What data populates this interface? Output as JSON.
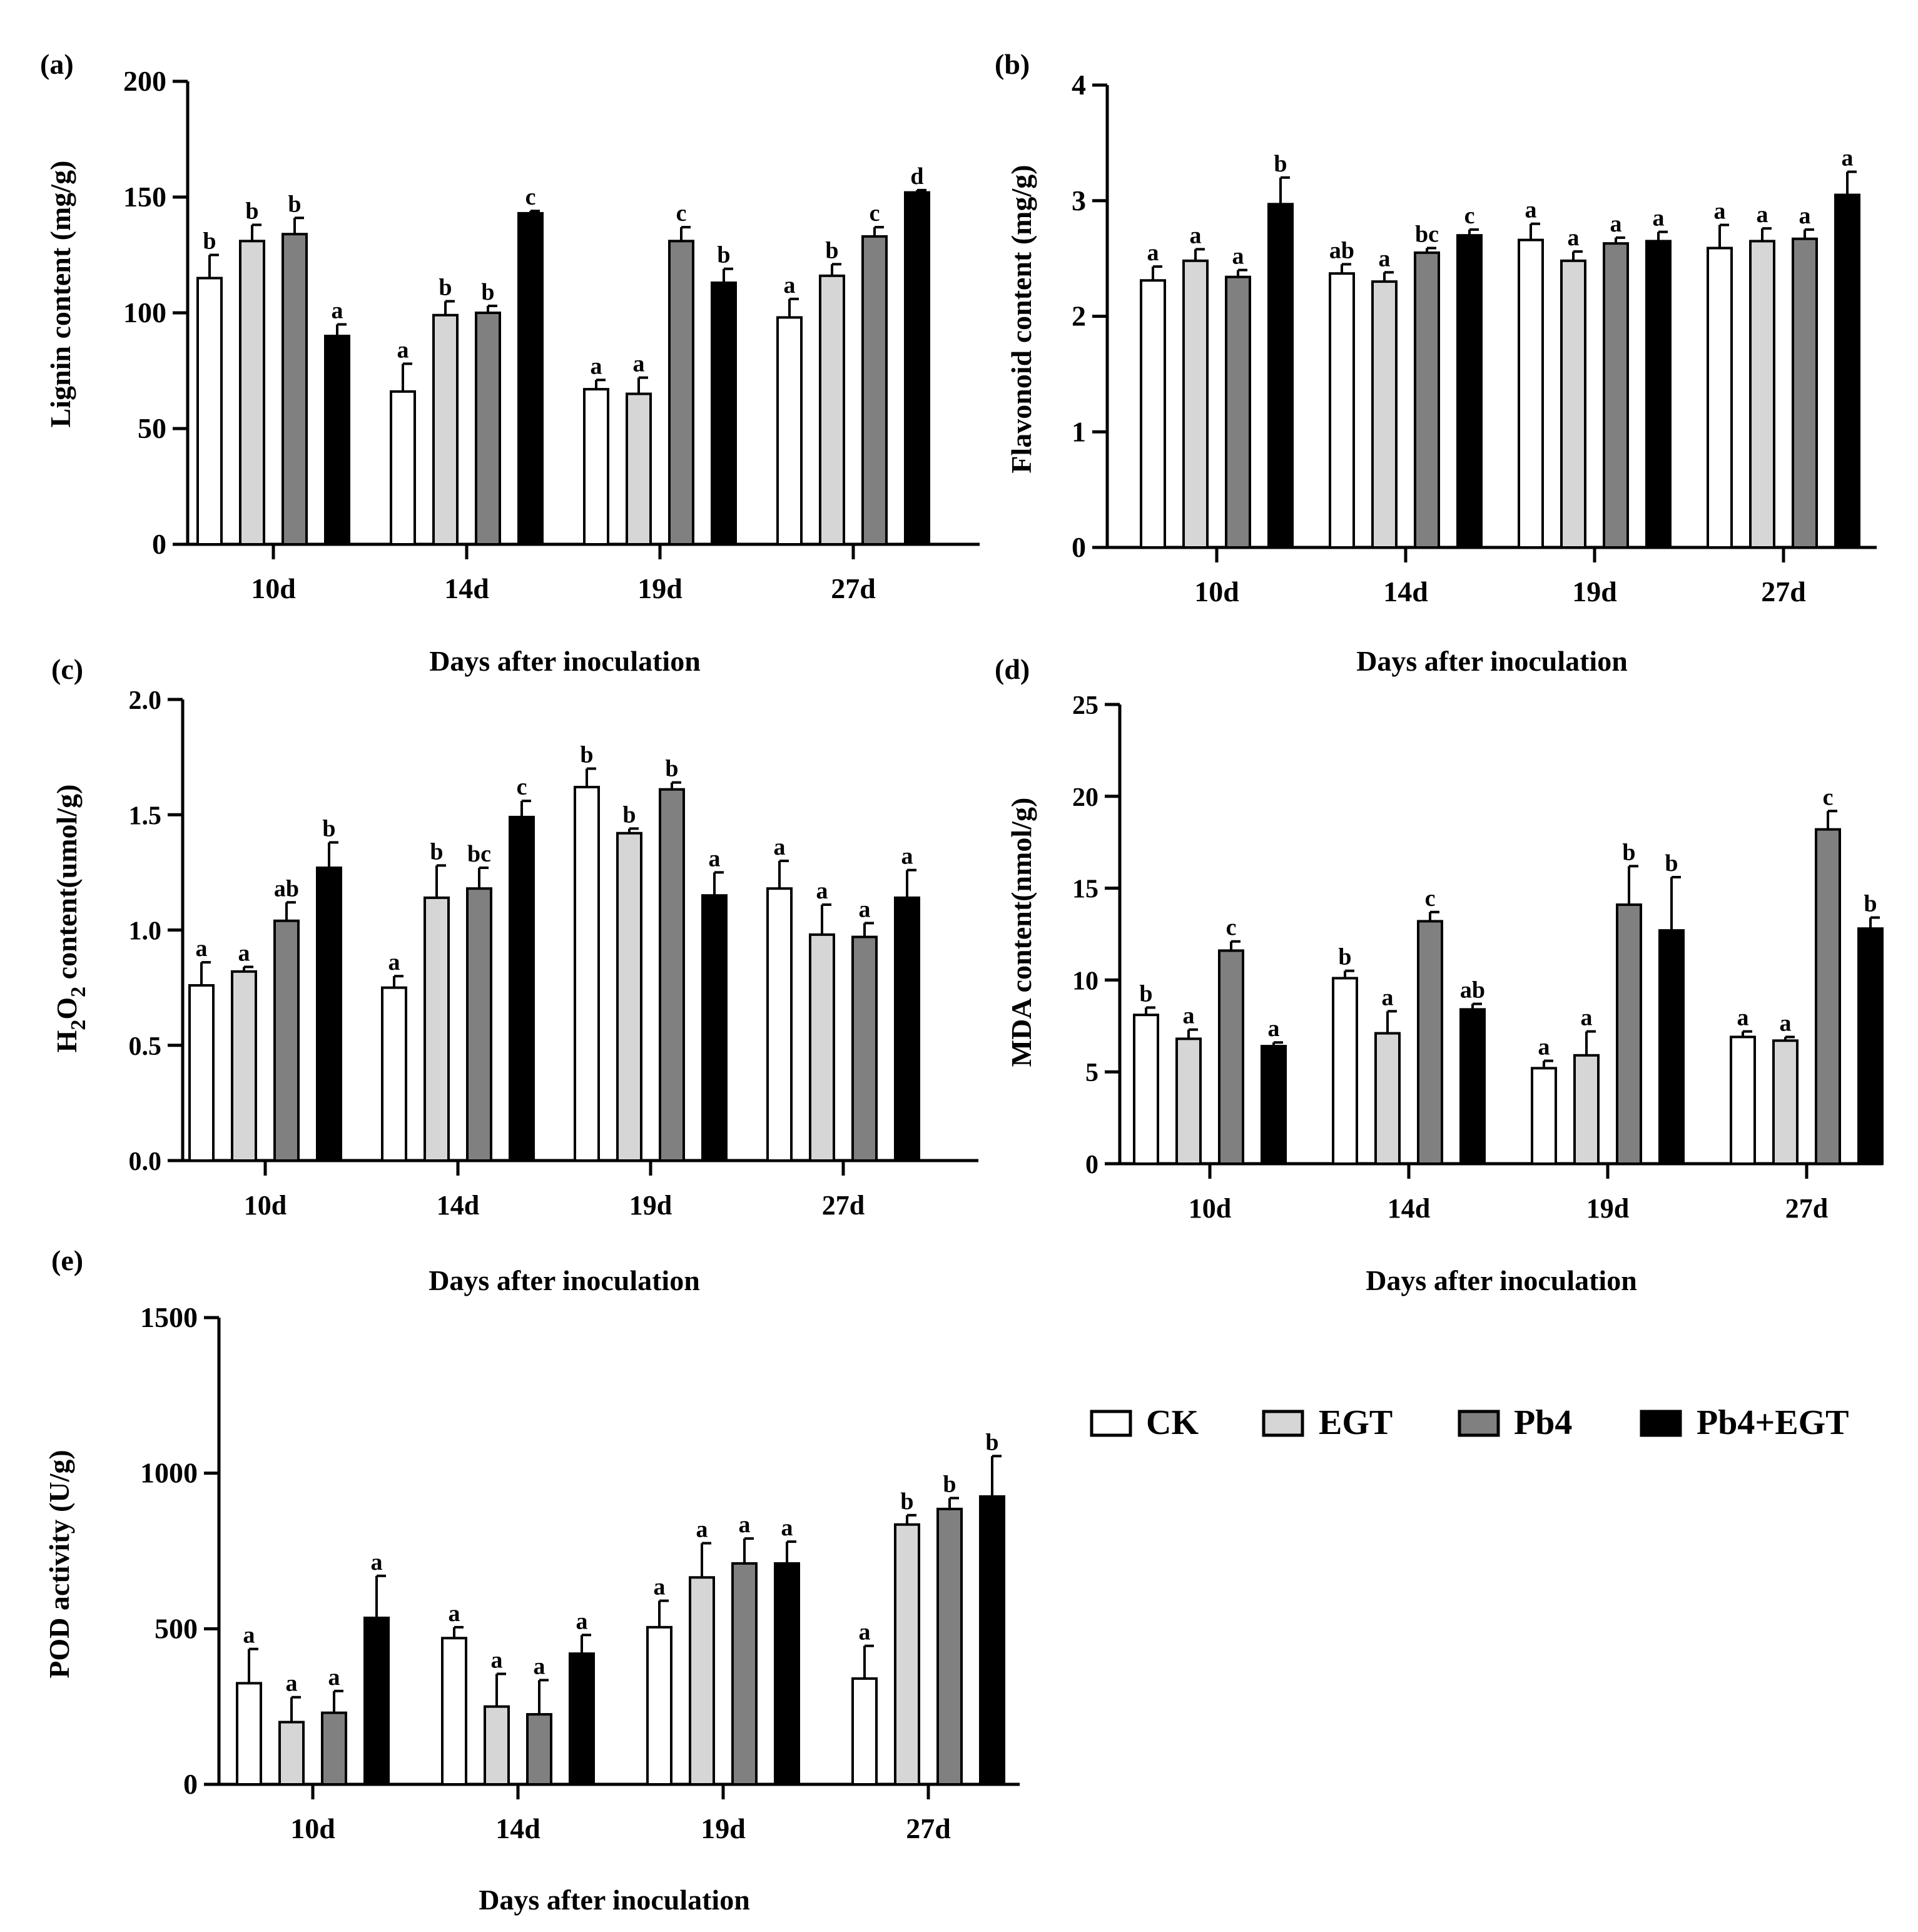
{
  "legend": {
    "entries": [
      {
        "name": "CK",
        "color": "#ffffff"
      },
      {
        "name": "EGT",
        "color": "#d6d6d6"
      },
      {
        "name": "Pb4",
        "color": "#808080"
      },
      {
        "name": "Pb4+EGT",
        "color": "#000000"
      }
    ]
  },
  "chart_data": [
    {
      "panel": "(a)",
      "type": "bar",
      "title": "",
      "ylabel": "Lignin content (mg/g)",
      "xlabel": "Days after inoculation",
      "categories": [
        "10d",
        "14d",
        "19d",
        "27d"
      ],
      "ylim": [
        0,
        200
      ],
      "yticks": [
        "0",
        "50",
        "100",
        "150",
        "200"
      ],
      "series": [
        {
          "name": "CK",
          "values": [
            115,
            66,
            67,
            98
          ],
          "errors": [
            10,
            12,
            4,
            8
          ],
          "letters": [
            "b",
            "a",
            "a",
            "a"
          ]
        },
        {
          "name": "EGT",
          "values": [
            131,
            99,
            65,
            116
          ],
          "errors": [
            7,
            6,
            7,
            5
          ],
          "letters": [
            "b",
            "b",
            "a",
            "b"
          ]
        },
        {
          "name": "Pb4",
          "values": [
            134,
            100,
            131,
            133
          ],
          "errors": [
            7,
            3,
            6,
            4
          ],
          "letters": [
            "b",
            "b",
            "c",
            "c"
          ]
        },
        {
          "name": "Pb4+EGT",
          "values": [
            90,
            143,
            113,
            152
          ],
          "errors": [
            5,
            1,
            6,
            1
          ],
          "letters": [
            "a",
            "c",
            "b",
            "d"
          ]
        }
      ]
    },
    {
      "panel": "(b)",
      "type": "bar",
      "title": "",
      "ylabel": "Flavonoid content (mg/g)",
      "xlabel": "Days after inoculation",
      "categories": [
        "10d",
        "14d",
        "19d",
        "27d"
      ],
      "ylim": [
        0,
        4
      ],
      "yticks": [
        "0",
        "1",
        "2",
        "3",
        "4"
      ],
      "series": [
        {
          "name": "CK",
          "values": [
            2.31,
            2.37,
            2.66,
            2.59
          ],
          "errors": [
            0.12,
            0.08,
            0.14,
            0.2
          ],
          "letters": [
            "a",
            "ab",
            "a",
            "a"
          ]
        },
        {
          "name": "EGT",
          "values": [
            2.48,
            2.3,
            2.48,
            2.65
          ],
          "errors": [
            0.1,
            0.08,
            0.08,
            0.11
          ],
          "letters": [
            "a",
            "a",
            "a",
            "a"
          ]
        },
        {
          "name": "Pb4",
          "values": [
            2.34,
            2.55,
            2.63,
            2.67
          ],
          "errors": [
            0.06,
            0.04,
            0.05,
            0.08
          ],
          "letters": [
            "a",
            "bc",
            "a",
            "a"
          ]
        },
        {
          "name": "Pb4+EGT",
          "values": [
            2.97,
            2.7,
            2.65,
            3.05
          ],
          "errors": [
            0.23,
            0.05,
            0.08,
            0.2
          ],
          "letters": [
            "b",
            "c",
            "a",
            "a"
          ]
        }
      ]
    },
    {
      "panel": "(c)",
      "type": "bar",
      "title": "",
      "ylabel_main": "H",
      "ylabel_sub1": "2",
      "ylabel_mid": "O",
      "ylabel_sub2": "2",
      "ylabel_tail": " content(umol/g)",
      "xlabel": "Days after inoculation",
      "categories": [
        "10d",
        "14d",
        "19d",
        "27d"
      ],
      "ylim": [
        0,
        2.0
      ],
      "yticks": [
        "0.0",
        "0.5",
        "1.0",
        "1.5",
        "2.0"
      ],
      "series": [
        {
          "name": "CK",
          "values": [
            0.76,
            0.75,
            1.62,
            1.18
          ],
          "errors": [
            0.1,
            0.05,
            0.08,
            0.12
          ],
          "letters": [
            "a",
            "a",
            "b",
            "a"
          ]
        },
        {
          "name": "EGT",
          "values": [
            0.82,
            1.14,
            1.42,
            0.98
          ],
          "errors": [
            0.02,
            0.14,
            0.02,
            0.13
          ],
          "letters": [
            "a",
            "b",
            "b",
            "a"
          ]
        },
        {
          "name": "Pb4",
          "values": [
            1.04,
            1.18,
            1.61,
            0.97
          ],
          "errors": [
            0.08,
            0.09,
            0.03,
            0.06
          ],
          "letters": [
            "ab",
            "bc",
            "b",
            "a"
          ]
        },
        {
          "name": "Pb4+EGT",
          "values": [
            1.27,
            1.49,
            1.15,
            1.14
          ],
          "errors": [
            0.11,
            0.07,
            0.1,
            0.12
          ],
          "letters": [
            "b",
            "c",
            "a",
            "a"
          ]
        }
      ]
    },
    {
      "panel": "(d)",
      "type": "bar",
      "title": "",
      "ylabel": "MDA content(nmol/g)",
      "xlabel": "Days after inoculation",
      "categories": [
        "10d",
        "14d",
        "19d",
        "27d"
      ],
      "ylim": [
        0,
        25
      ],
      "yticks": [
        "0",
        "5",
        "10",
        "15",
        "20",
        "25"
      ],
      "series": [
        {
          "name": "CK",
          "values": [
            8.1,
            10.1,
            5.2,
            6.9
          ],
          "errors": [
            0.4,
            0.4,
            0.4,
            0.3
          ],
          "letters": [
            "b",
            "b",
            "a",
            "a"
          ]
        },
        {
          "name": "EGT",
          "values": [
            6.8,
            7.1,
            5.9,
            6.7
          ],
          "errors": [
            0.5,
            1.2,
            1.3,
            0.2
          ],
          "letters": [
            "a",
            "a",
            "a",
            "a"
          ]
        },
        {
          "name": "Pb4",
          "values": [
            11.6,
            13.2,
            14.1,
            18.2
          ],
          "errors": [
            0.5,
            0.5,
            2.1,
            1.0
          ],
          "letters": [
            "c",
            "c",
            "b",
            "c"
          ]
        },
        {
          "name": "Pb4+EGT",
          "values": [
            6.4,
            8.4,
            12.7,
            12.8
          ],
          "errors": [
            0.2,
            0.3,
            2.9,
            0.6
          ],
          "letters": [
            "a",
            "ab",
            "b",
            "b"
          ]
        }
      ]
    },
    {
      "panel": "(e)",
      "type": "bar",
      "title": "",
      "ylabel": "POD activity (U/g)",
      "xlabel": "Days after inoculation",
      "categories": [
        "10d",
        "14d",
        "19d",
        "27d"
      ],
      "ylim": [
        0,
        1500
      ],
      "yticks": [
        "0",
        "500",
        "1000",
        "1500"
      ],
      "series": [
        {
          "name": "CK",
          "values": [
            325,
            470,
            505,
            340
          ],
          "errors": [
            110,
            35,
            85,
            105
          ],
          "letters": [
            "a",
            "a",
            "a",
            "a"
          ]
        },
        {
          "name": "EGT",
          "values": [
            200,
            250,
            665,
            835
          ],
          "errors": [
            80,
            105,
            110,
            30
          ],
          "letters": [
            "a",
            "a",
            "a",
            "b"
          ]
        },
        {
          "name": "Pb4",
          "values": [
            230,
            225,
            710,
            885
          ],
          "errors": [
            70,
            110,
            80,
            35
          ],
          "letters": [
            "a",
            "a",
            "a",
            "b"
          ]
        },
        {
          "name": "Pb4+EGT",
          "values": [
            535,
            420,
            710,
            925
          ],
          "errors": [
            135,
            60,
            70,
            130
          ],
          "letters": [
            "a",
            "a",
            "a",
            "b"
          ]
        }
      ]
    }
  ]
}
